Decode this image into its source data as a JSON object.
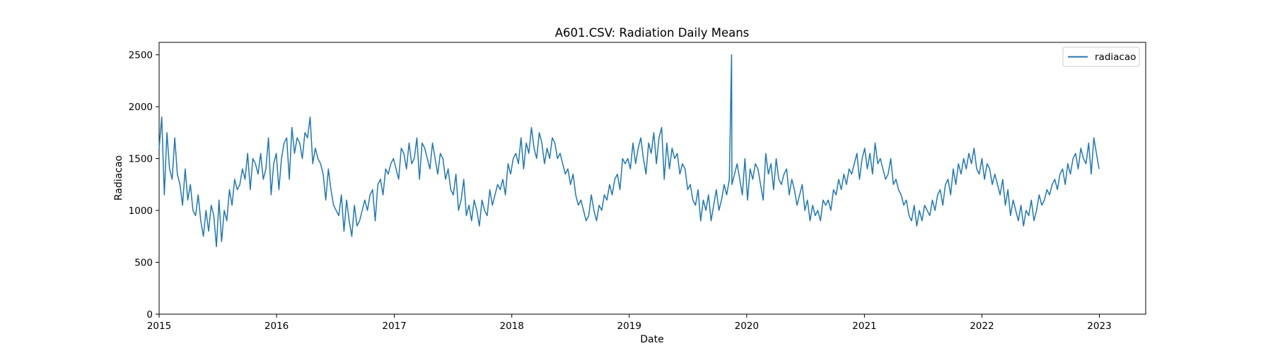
{
  "chart_data": {
    "type": "line",
    "title": "A601.CSV: Radiation Daily Means",
    "xlabel": "Date",
    "ylabel": "Radiacao",
    "x_range": [
      "2015-01-01",
      "2023-05-25"
    ],
    "ylim": [
      0,
      2620
    ],
    "x_ticks": [
      "2015",
      "2016",
      "2017",
      "2018",
      "2019",
      "2020",
      "2021",
      "2022",
      "2023"
    ],
    "y_ticks": [
      0,
      500,
      1000,
      1500,
      2000,
      2500
    ],
    "grid": false,
    "legend": {
      "position": "top-right",
      "entries": [
        "radiacao"
      ]
    },
    "colors": {
      "series": "#1f77b4",
      "axes": "#000000",
      "legend_border": "#cccccc"
    },
    "series": [
      {
        "name": "radiacao",
        "x_start": "2015-01-01",
        "x_end": "2022-12-31",
        "sampling": "weekly means read from the figure (original plots daily means)",
        "values": [
          1600,
          1900,
          1150,
          1750,
          1400,
          1300,
          1700,
          1350,
          1250,
          1050,
          1400,
          1100,
          1250,
          1000,
          950,
          1150,
          900,
          750,
          1000,
          800,
          1050,
          950,
          650,
          1100,
          700,
          1000,
          900,
          1200,
          1050,
          1300,
          1200,
          1250,
          1400,
          1300,
          1550,
          1200,
          1500,
          1450,
          1350,
          1550,
          1300,
          1400,
          1700,
          1150,
          1450,
          1550,
          1200,
          1500,
          1650,
          1700,
          1300,
          1800,
          1550,
          1700,
          1650,
          1500,
          1750,
          1700,
          1900,
          1450,
          1600,
          1500,
          1450,
          1350,
          1100,
          1400,
          1200,
          1050,
          1000,
          950,
          1150,
          800,
          1100,
          900,
          750,
          1050,
          850,
          900,
          1000,
          1100,
          1000,
          1150,
          1200,
          900,
          1250,
          1300,
          1150,
          1400,
          1350,
          1450,
          1500,
          1400,
          1300,
          1600,
          1550,
          1400,
          1650,
          1450,
          1500,
          1700,
          1300,
          1650,
          1600,
          1500,
          1400,
          1650,
          1500,
          1350,
          1550,
          1500,
          1300,
          1400,
          1200,
          1150,
          1350,
          1000,
          1100,
          1300,
          950,
          1050,
          900,
          1100,
          1000,
          850,
          1100,
          1000,
          950,
          1200,
          1050,
          1150,
          1250,
          1200,
          1300,
          1150,
          1450,
          1350,
          1500,
          1550,
          1450,
          1700,
          1400,
          1650,
          1550,
          1800,
          1600,
          1500,
          1750,
          1650,
          1450,
          1600,
          1500,
          1700,
          1650,
          1500,
          1550,
          1450,
          1350,
          1400,
          1250,
          1350,
          1150,
          1050,
          1100,
          1000,
          900,
          950,
          1150,
          1000,
          900,
          1050,
          1000,
          1150,
          1100,
          1250,
          1150,
          1300,
          1350,
          1200,
          1500,
          1450,
          1500,
          1400,
          1650,
          1450,
          1600,
          1700,
          1500,
          1350,
          1650,
          1550,
          1750,
          1450,
          1700,
          1800,
          1300,
          1650,
          1400,
          1600,
          1500,
          1550,
          1350,
          1450,
          1400,
          1200,
          1250,
          1100,
          1050,
          1200,
          900,
          1100,
          1000,
          1150,
          900,
          1050,
          1200,
          1000,
          1100,
          1250,
          1150,
          1300,
          1250,
          1350,
          1450,
          1300,
          1150,
          1500,
          1100,
          1400,
          1300,
          1450,
          1400,
          1250,
          1100,
          1550,
          1350,
          1450,
          1200,
          1500,
          1300,
          1250,
          1350,
          1400,
          1150,
          1300,
          1200,
          1050,
          1150,
          1250,
          1000,
          1100,
          900,
          1050,
          950,
          1000,
          900,
          1100,
          1050,
          1100,
          1000,
          1200,
          1150,
          1300,
          1200,
          1350,
          1250,
          1400,
          1350,
          1450,
          1550,
          1300,
          1500,
          1600,
          1400,
          1550,
          1350,
          1650,
          1450,
          1500,
          1400,
          1300,
          1350,
          1500,
          1250,
          1300,
          1200,
          1150,
          1050,
          1100,
          950,
          900,
          1050,
          850,
          1000,
          900,
          1050,
          1000,
          950,
          1100,
          1000,
          1150,
          1200,
          1050,
          1250,
          1300,
          1150,
          1400,
          1250,
          1450,
          1350,
          1500,
          1400,
          1550,
          1450,
          1600,
          1400,
          1350,
          1500,
          1300,
          1450,
          1400,
          1250,
          1350,
          1250,
          1150,
          1300,
          1050,
          1200,
          950,
          1100,
          1000,
          900,
          1050,
          850,
          1000,
          950,
          1100,
          900,
          1000,
          1150,
          1050,
          1100,
          1200,
          1150,
          1250,
          1300,
          1200,
          1350,
          1400,
          1250,
          1450,
          1350,
          1500,
          1550,
          1400,
          1600,
          1500,
          1450,
          1650,
          1350,
          1700,
          1550,
          1400
        ]
      }
    ],
    "spike": {
      "x": "2019-11-15",
      "value": 2500
    }
  }
}
